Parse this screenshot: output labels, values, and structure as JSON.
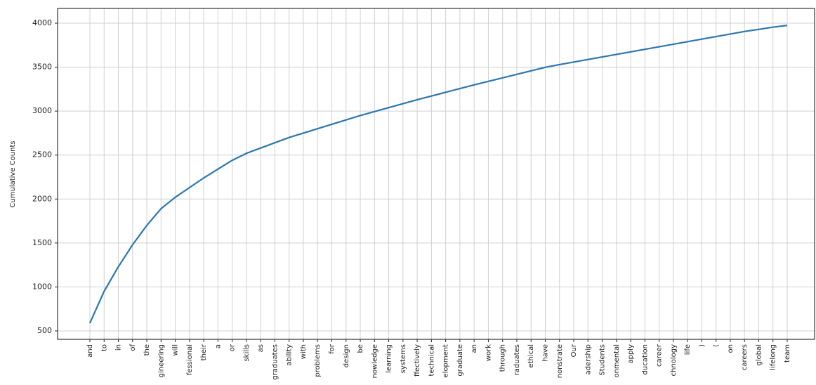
{
  "chart_data": {
    "type": "line",
    "ylabel": "Cumulative Counts",
    "categories": [
      "and",
      "to",
      "in",
      "of",
      "the",
      "gineering",
      "will",
      "fessional",
      "their",
      "a",
      "or",
      "skills",
      "as",
      "graduates",
      "ability",
      "with",
      "problems",
      "for",
      "design",
      "be",
      "nowledge",
      "learning",
      "systems",
      "ffectively",
      "technical",
      "elopment",
      "graduate",
      "an",
      "work",
      "through",
      "raduates",
      "ethical",
      "have",
      "nonstrate",
      "Our",
      "adership",
      "Students",
      "onmental",
      "apply",
      "ducation",
      "career",
      "chnology",
      "life",
      ")",
      "(",
      "on",
      "careers",
      "global",
      "lifelong",
      "team"
    ],
    "series": [
      {
        "name": "Cumulative Counts",
        "color": "#2a77b0",
        "values": [
          588,
          950,
          1230,
          1480,
          1700,
          1890,
          2020,
          2130,
          2240,
          2340,
          2440,
          2520,
          2580,
          2640,
          2700,
          2750,
          2800,
          2850,
          2900,
          2950,
          2995,
          3040,
          3085,
          3130,
          3172,
          3214,
          3256,
          3298,
          3338,
          3378,
          3418,
          3458,
          3498,
          3529,
          3558,
          3587,
          3616,
          3645,
          3674,
          3703,
          3732,
          3761,
          3790,
          3819,
          3848,
          3877,
          3906,
          3930,
          3955,
          3975
        ]
      }
    ],
    "ylim": [
      404,
      4168
    ],
    "yticks": [
      500,
      1000,
      1500,
      2000,
      2500,
      3000,
      3500,
      4000
    ],
    "grid": true
  }
}
